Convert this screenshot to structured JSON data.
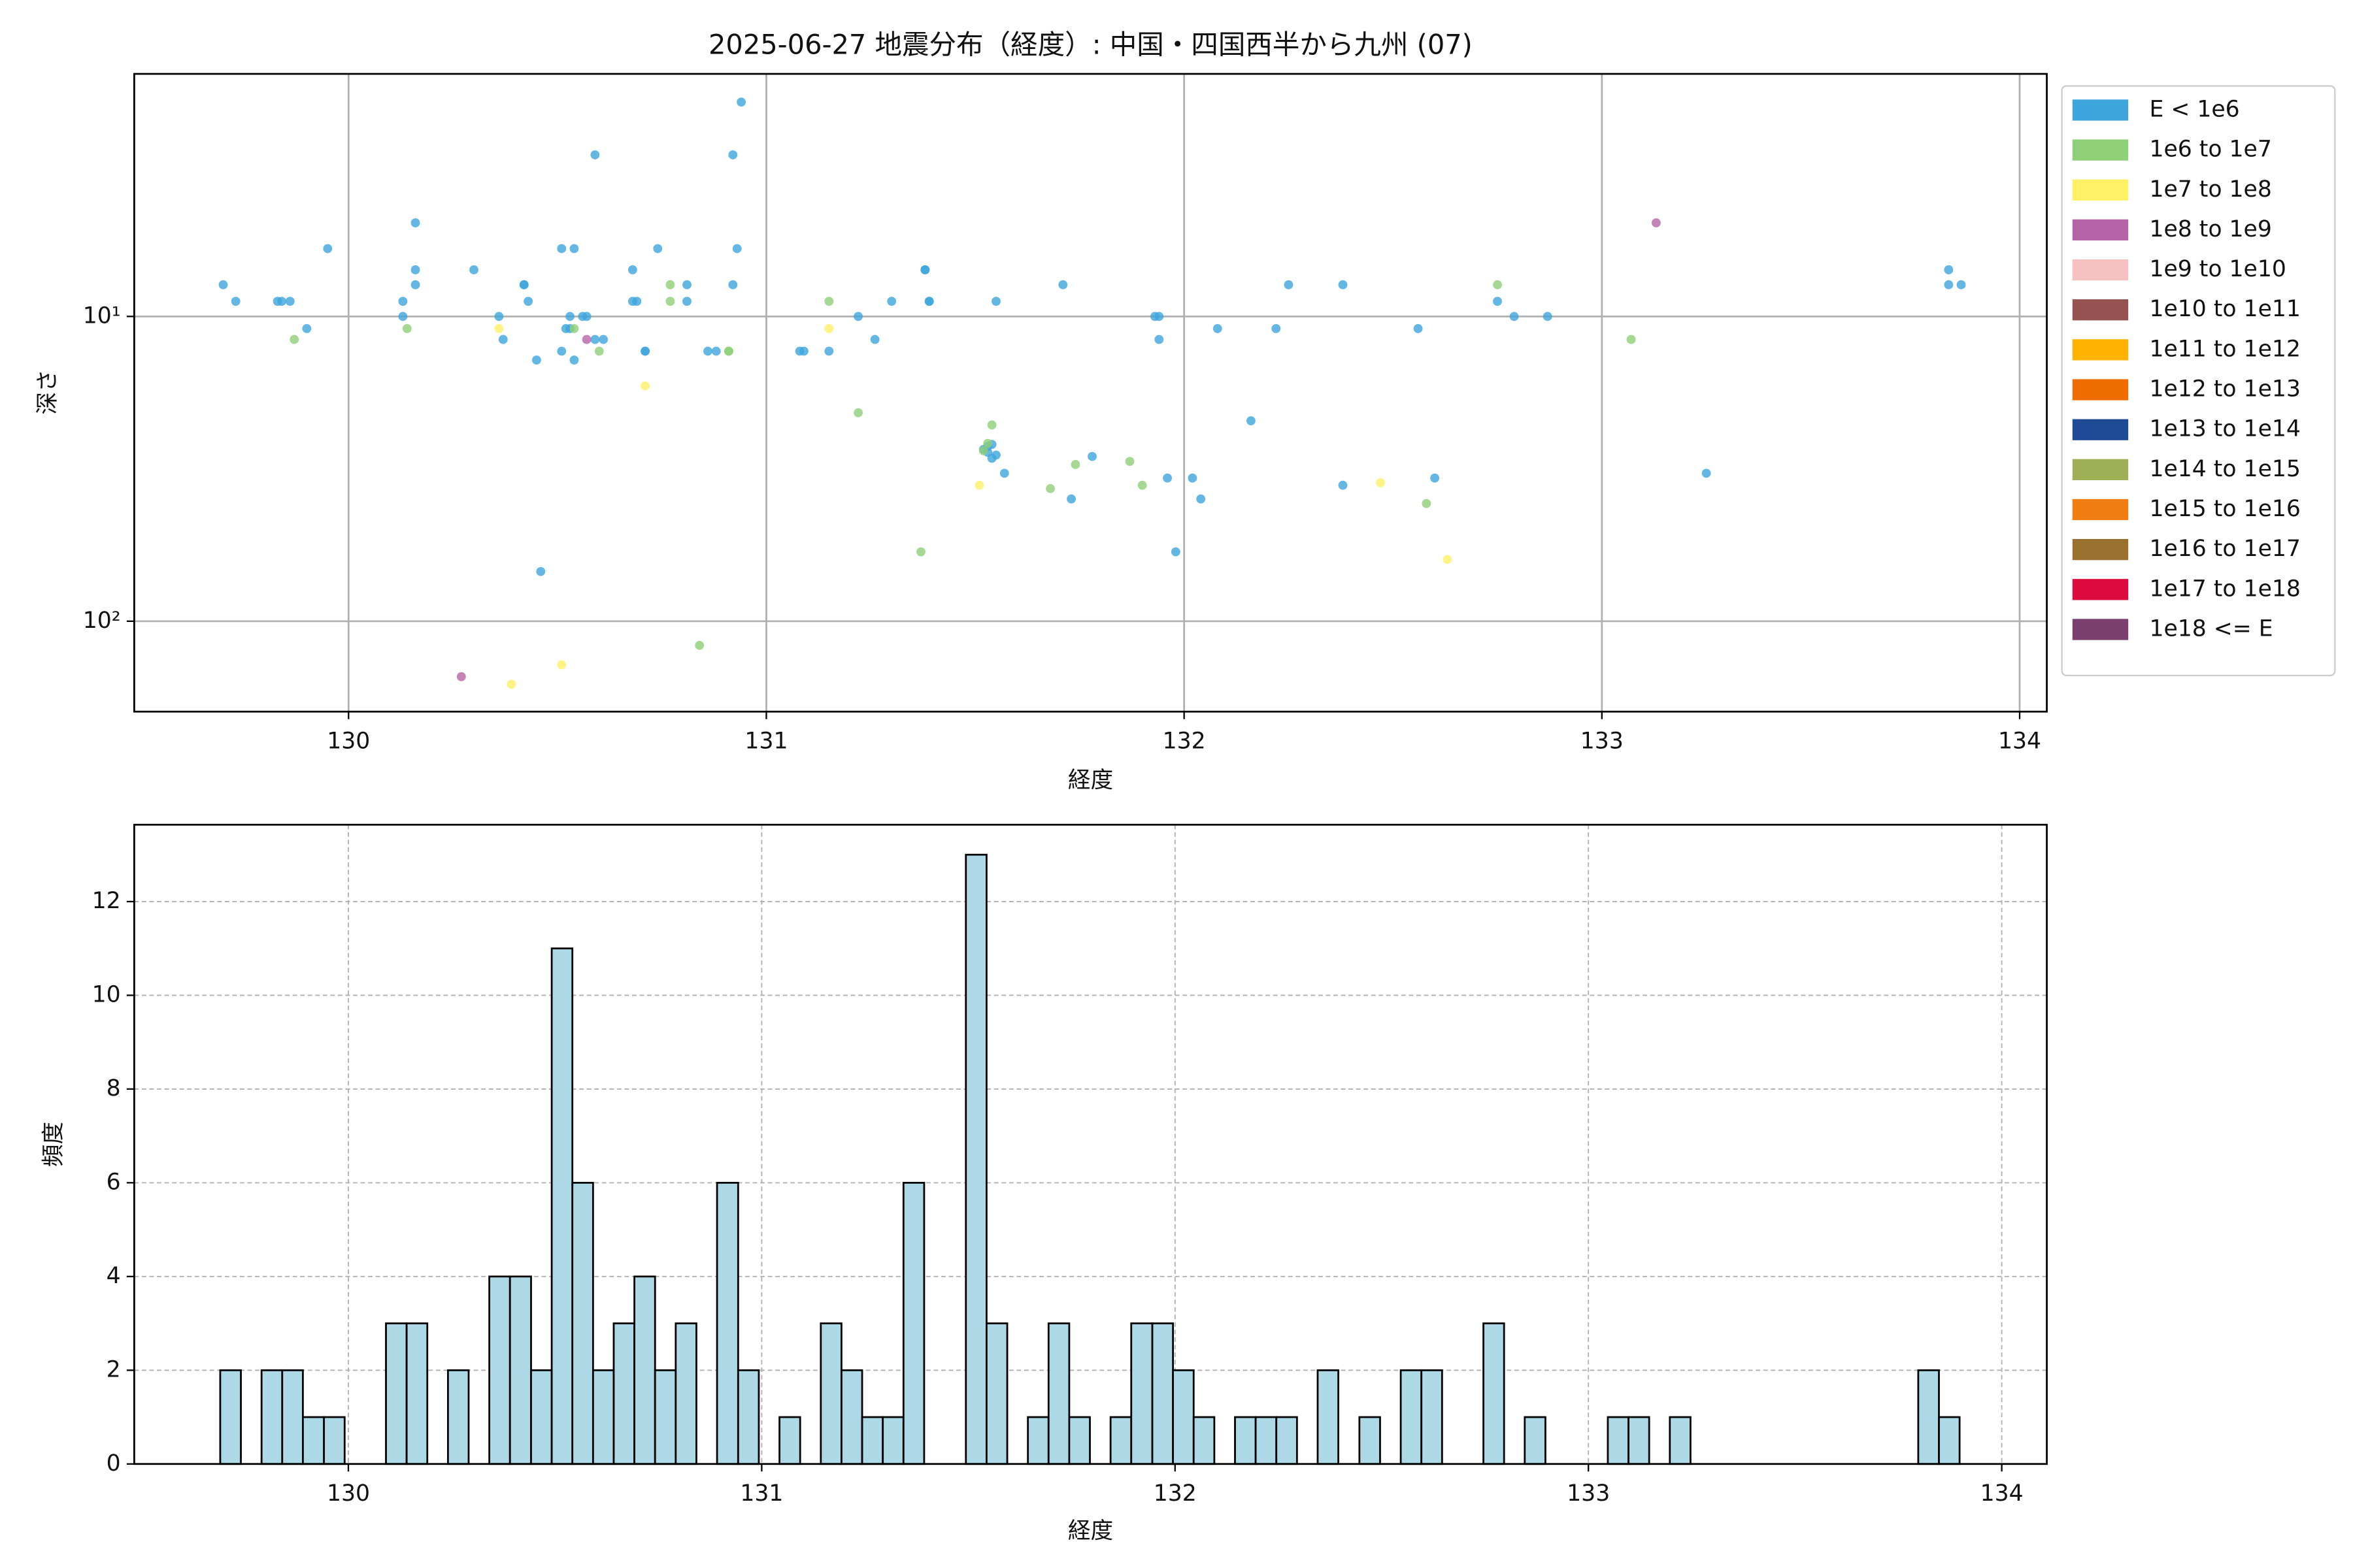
{
  "chart_data": [
    {
      "type": "scatter",
      "title": "2025-06-27 地震分布（経度）: 中国・四国西半から九州 (07)",
      "xlabel": "経度",
      "ylabel": "深さ",
      "xlim": [
        129.487,
        134.065
      ],
      "xticks": [
        130,
        131,
        132,
        133,
        134
      ],
      "ylim": [
        198,
        1.6
      ],
      "log_y": true,
      "yticks": [
        {
          "value": 10,
          "label": "10¹"
        },
        {
          "value": 100,
          "label": "10²"
        }
      ],
      "grid": true,
      "legend": "outside-right",
      "series": [
        {
          "name": "E < 1e6",
          "color": "#3ea5dc",
          "x": [
            129.7,
            129.73,
            129.83,
            129.84,
            129.86,
            129.9,
            129.95,
            130.13,
            130.13,
            130.16,
            130.16,
            130.16,
            130.3,
            130.36,
            130.37,
            130.42,
            130.42,
            130.43,
            130.45,
            130.51,
            130.51,
            130.52,
            130.53,
            130.53,
            130.54,
            130.54,
            130.56,
            130.57,
            130.59,
            130.61,
            130.68,
            130.68,
            130.69,
            130.71,
            130.71,
            130.74,
            130.81,
            130.81,
            130.46,
            130.59,
            130.92,
            130.92,
            130.93,
            130.94,
            130.86,
            130.88,
            131.08,
            131.09,
            131.15,
            131.22,
            131.26,
            131.3,
            131.38,
            131.38,
            131.39,
            131.39,
            131.52,
            131.53,
            131.53,
            131.54,
            131.54,
            131.55,
            131.57,
            131.55,
            131.71,
            131.73,
            131.78,
            131.93,
            131.94,
            131.94,
            131.96,
            131.98,
            132.02,
            132.04,
            132.08,
            132.16,
            132.22,
            132.25,
            132.38,
            132.38,
            132.56,
            132.6,
            132.75,
            132.79,
            132.87,
            133.25,
            133.83,
            133.83,
            133.86
          ],
          "y": [
            7.87,
            8.92,
            8.92,
            8.92,
            8.92,
            10.96,
            5.99,
            8.92,
            10,
            7.87,
            7.03,
            4.93,
            7.03,
            10,
            11.9,
            7.87,
            7.87,
            8.92,
            13.9,
            13.0,
            5.99,
            10.96,
            10,
            10.96,
            5.99,
            13.9,
            10,
            10,
            11.9,
            11.9,
            8.92,
            7.03,
            8.92,
            13.0,
            13.0,
            5.99,
            8.92,
            7.87,
            68.7,
            2.95,
            2.95,
            7.87,
            5.99,
            1.98,
            13.0,
            13.0,
            13.0,
            13.0,
            13.0,
            10,
            11.9,
            8.92,
            7.03,
            7.03,
            8.92,
            8.92,
            27.3,
            26.7,
            27.9,
            26.3,
            29.2,
            28.5,
            32.7,
            8.92,
            7.87,
            39.7,
            28.8,
            10,
            10,
            11.9,
            33.9,
            59.2,
            33.9,
            39.7,
            10.96,
            22.0,
            10.96,
            7.87,
            7.87,
            35.8,
            10.96,
            33.9,
            8.92,
            10,
            10,
            32.7,
            7.03,
            7.87,
            7.87
          ]
        },
        {
          "name": "1e6 to 1e7",
          "color": "#8fcf78",
          "x": [
            129.87,
            130.14,
            130.54,
            130.6,
            130.77,
            130.77,
            130.84,
            130.91,
            130.91,
            131.15,
            131.22,
            131.37,
            131.52,
            131.53,
            131.54,
            131.68,
            131.74,
            131.87,
            131.9,
            132.58,
            132.75,
            133.07
          ],
          "y": [
            11.9,
            10.96,
            10.96,
            13.0,
            7.87,
            8.92,
            120,
            13.0,
            13.0,
            8.92,
            20.7,
            59.2,
            27.6,
            26.1,
            22.7,
            36.7,
            30.6,
            29.9,
            35.8,
            41.1,
            7.87,
            11.9
          ]
        },
        {
          "name": "1e7 to 1e8",
          "color": "#fff066",
          "x": [
            130.36,
            130.39,
            130.51,
            130.71,
            131.15,
            131.51,
            132.47,
            132.63
          ],
          "y": [
            10.96,
            161,
            139,
            16.9,
            10.96,
            35.8,
            35.1,
            62.7
          ]
        },
        {
          "name": "1e8 to 1e9",
          "color": "#b565a7",
          "x": [
            130.27,
            130.57,
            133.13
          ],
          "y": [
            152,
            11.9,
            4.93
          ]
        },
        {
          "name": "1e9 to 1e10",
          "color": "#f7c0c0",
          "x": [],
          "y": []
        },
        {
          "name": "1e10 to 1e11",
          "color": "#955251",
          "x": [],
          "y": []
        },
        {
          "name": "1e11 to 1e12",
          "color": "#ffb300",
          "x": [],
          "y": []
        },
        {
          "name": "1e12 to 1e13",
          "color": "#ef6c00",
          "x": [],
          "y": []
        },
        {
          "name": "1e13 to 1e14",
          "color": "#1f4a96",
          "x": [],
          "y": []
        },
        {
          "name": "1e14 to 1e15",
          "color": "#9eae54",
          "x": [],
          "y": []
        },
        {
          "name": "1e15 to 1e16",
          "color": "#f07e12",
          "x": [],
          "y": []
        },
        {
          "name": "1e16 to 1e17",
          "color": "#9a702e",
          "x": [],
          "y": []
        },
        {
          "name": "1e17 to 1e18",
          "color": "#dc0a3d",
          "x": [],
          "y": []
        },
        {
          "name": "1e18 <= E",
          "color": "#7a3f6f",
          "x": [],
          "y": []
        }
      ]
    },
    {
      "type": "histogram",
      "xlabel": "経度",
      "ylabel": "頻度",
      "color": "#add8e6",
      "xlim": [
        129.482,
        134.109
      ],
      "xticks": [
        130,
        131,
        132,
        133,
        134
      ],
      "ylim": [
        0,
        13.64
      ],
      "yticks": [
        0,
        2,
        4,
        6,
        8,
        10,
        12
      ],
      "grid": true,
      "bins": [
        129.69,
        129.74,
        129.79,
        129.84,
        129.89,
        129.941,
        129.991,
        130.041,
        130.091,
        130.141,
        130.191,
        130.241,
        130.291,
        130.341,
        130.391,
        130.442,
        130.492,
        130.542,
        130.592,
        130.642,
        130.692,
        130.742,
        130.792,
        130.842,
        130.892,
        130.943,
        130.993,
        131.043,
        131.093,
        131.143,
        131.193,
        131.243,
        131.293,
        131.343,
        131.393,
        131.444,
        131.494,
        131.544,
        131.594,
        131.644,
        131.694,
        131.744,
        131.794,
        131.844,
        131.894,
        131.945,
        131.995,
        132.045,
        132.095,
        132.145,
        132.195,
        132.245,
        132.295,
        132.345,
        132.395,
        132.446,
        132.496,
        132.546,
        132.596,
        132.646,
        132.696,
        132.746,
        132.796,
        132.846,
        132.896,
        132.947,
        132.997,
        133.047,
        133.097,
        133.147,
        133.197,
        133.247,
        133.297,
        133.347,
        133.397,
        133.448,
        133.498,
        133.548,
        133.598,
        133.648,
        133.698,
        133.748,
        133.798,
        133.848,
        133.898
      ],
      "counts": [
        2,
        0,
        2,
        2,
        1,
        1,
        0,
        0,
        3,
        3,
        0,
        2,
        0,
        4,
        4,
        2,
        11,
        6,
        2,
        3,
        4,
        2,
        3,
        0,
        6,
        2,
        0,
        1,
        0,
        3,
        2,
        1,
        1,
        6,
        0,
        0,
        13,
        3,
        0,
        1,
        3,
        1,
        0,
        1,
        3,
        3,
        2,
        1,
        0,
        1,
        1,
        1,
        0,
        2,
        0,
        1,
        0,
        2,
        2,
        0,
        0,
        3,
        0,
        1,
        0,
        0,
        0,
        1,
        1,
        0,
        1,
        0,
        0,
        0,
        0,
        0,
        0,
        0,
        0,
        0,
        0,
        0,
        2,
        1
      ]
    }
  ]
}
